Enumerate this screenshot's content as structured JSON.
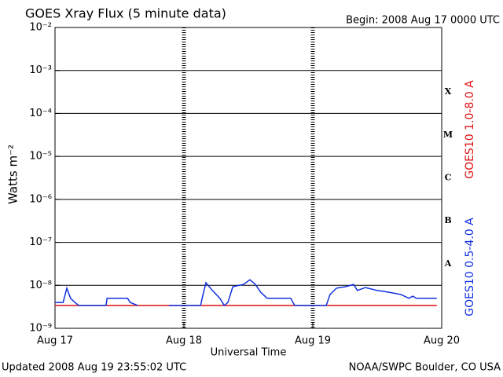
{
  "chart_data": {
    "type": "line",
    "title": "GOES Xray Flux (5 minute data)",
    "subtitle": "Begin:  2008 Aug 17 0000 UTC",
    "ylabel": "Watts m⁻²",
    "xlabel": "Universal Time",
    "footer_left": "Updated 2008 Aug 19 23:55:02 UTC",
    "footer_right": "NOAA/SWPC Boulder, CO USA",
    "log_y": true,
    "grid": true,
    "ylim": [
      1e-09,
      0.01
    ],
    "yticks": [
      {
        "value": 1e-09,
        "label": "10⁻⁹"
      },
      {
        "value": 1e-08,
        "label": "10⁻⁸"
      },
      {
        "value": 1e-07,
        "label": "10⁻⁷"
      },
      {
        "value": 1e-06,
        "label": "10⁻⁶"
      },
      {
        "value": 1e-05,
        "label": "10⁻⁵"
      },
      {
        "value": 0.0001,
        "label": "10⁻⁴"
      },
      {
        "value": 0.001,
        "label": "10⁻³"
      },
      {
        "value": 0.01,
        "label": "10⁻²"
      }
    ],
    "xlim": [
      0,
      72
    ],
    "xticks": [
      {
        "value": 0,
        "label": "Aug 17"
      },
      {
        "value": 24,
        "label": "Aug 18"
      },
      {
        "value": 48,
        "label": "Aug 19"
      },
      {
        "value": 72,
        "label": "Aug 20"
      }
    ],
    "flare_classes": [
      "A",
      "B",
      "C",
      "M",
      "X"
    ],
    "series": [
      {
        "name": "GOES10 1.0-8.0 A",
        "color": "#e01010",
        "x": [
          0,
          71.1
        ],
        "values": [
          3.4e-09,
          3.4e-09
        ]
      },
      {
        "name": "GOES10 0.5-4.0 A",
        "color": "#1030e0",
        "x": [
          0,
          1.5,
          2.2,
          2.9,
          3.7,
          4.4,
          9.5,
          9.7,
          13.5,
          14.0,
          15.4,
          16,
          21.2,
          27.1,
          27.4,
          28.1,
          29.3,
          30.7,
          31.5,
          32.2,
          33.1,
          35.1,
          36.3,
          37.3,
          38.3,
          39.5,
          43.9,
          44.6,
          50.5,
          51.2,
          52.4,
          54.1,
          55.6,
          56.3,
          57.8,
          60.0,
          62.2,
          64.4,
          65.9,
          66.6,
          67.3,
          71.1
        ],
        "values": [
          4e-09,
          4e-09,
          8.6e-09,
          5e-09,
          4e-09,
          3.4e-09,
          3.4e-09,
          5e-09,
          5e-09,
          4e-09,
          3.4e-09,
          null,
          3.4e-09,
          3.4e-09,
          5e-09,
          1.15e-08,
          7.6e-09,
          5e-09,
          3.4e-09,
          4e-09,
          9.3e-09,
          1.05e-08,
          1.35e-08,
          1.05e-08,
          6.9e-09,
          5e-09,
          5e-09,
          3.4e-09,
          3.4e-09,
          6.1e-09,
          8.6e-09,
          9.3e-09,
          1.05e-08,
          7.6e-09,
          8.9e-09,
          7.6e-09,
          6.9e-09,
          6.1e-09,
          5e-09,
          5.6e-09,
          5e-09,
          5e-09
        ]
      }
    ]
  }
}
